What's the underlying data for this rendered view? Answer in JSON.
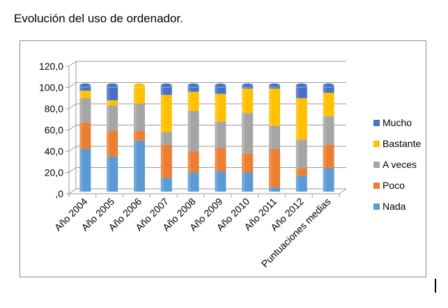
{
  "title": "Evolución del uso de ordenador.",
  "chart_data": {
    "type": "bar",
    "stacked": true,
    "three_d": true,
    "title": "",
    "xlabel": "",
    "ylabel": "",
    "ylim": [
      0,
      120
    ],
    "yticks": [
      ",0",
      "20,0",
      "40,0",
      "60,0",
      "80,0",
      "100,0",
      "120,0"
    ],
    "grid": true,
    "legend_position": "right",
    "categories": [
      "Año 2004",
      "Año 2005",
      "Año 2006",
      "Año 2007",
      "Año 2008",
      "Año 2009",
      "Año 2010",
      "Año 2011",
      "Año 2012",
      "Puntuaciones medias"
    ],
    "series": [
      {
        "name": "Nada",
        "color": "#5b9bd5",
        "values": [
          40,
          33,
          48,
          13,
          18,
          19,
          18,
          4,
          15,
          22
        ]
      },
      {
        "name": "Poco",
        "color": "#ed7d31",
        "values": [
          25,
          24,
          9,
          31,
          20,
          22,
          18,
          36,
          7,
          22
        ]
      },
      {
        "name": "A veces",
        "color": "#a5a5a5",
        "values": [
          23,
          24,
          26,
          12,
          38,
          25,
          38,
          22,
          27,
          27
        ]
      },
      {
        "name": "Bastante",
        "color": "#ffc000",
        "values": [
          7,
          5,
          17,
          35,
          18,
          26,
          23,
          35,
          39,
          22
        ]
      },
      {
        "name": "Mucho",
        "color": "#4472c4",
        "values": [
          5,
          14,
          0,
          9,
          6,
          8,
          3,
          3,
          12,
          7
        ]
      }
    ]
  }
}
